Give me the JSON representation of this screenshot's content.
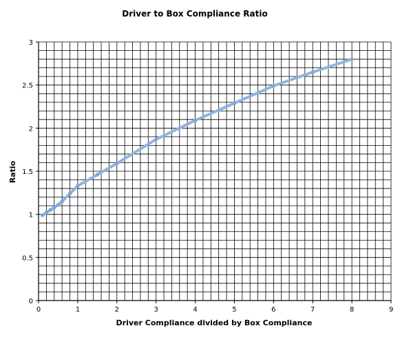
{
  "chart_data": {
    "type": "line",
    "title": "Driver to Box Compliance Ratio",
    "xlabel": "Driver Compliance divided by Box Compliance",
    "ylabel": "Ratio",
    "xlim": [
      0,
      9
    ],
    "ylim": [
      0,
      3
    ],
    "x_ticks": [
      "0",
      "1",
      "2",
      "3",
      "4",
      "5",
      "6",
      "7",
      "8",
      "9"
    ],
    "y_ticks": [
      "0",
      "0.5",
      "1",
      "1.5",
      "2",
      "2.5",
      "3"
    ],
    "grid": true,
    "grid_minor_x_per_major": 5,
    "grid_minor_y_per_major": 5,
    "line_color": "#8fb3e0",
    "series": [
      {
        "x": [
          0.1,
          0.2,
          0.3,
          0.4,
          0.5,
          0.6,
          0.8,
          1.0,
          1.5,
          2.0,
          3.0,
          4.0,
          5.0,
          6.0,
          7.0,
          8.0
        ],
        "values": [
          0.99,
          1.02,
          1.05,
          1.08,
          1.11,
          1.15,
          1.24,
          1.33,
          1.46,
          1.59,
          1.87,
          2.09,
          2.29,
          2.49,
          2.65,
          2.8
        ]
      }
    ]
  }
}
